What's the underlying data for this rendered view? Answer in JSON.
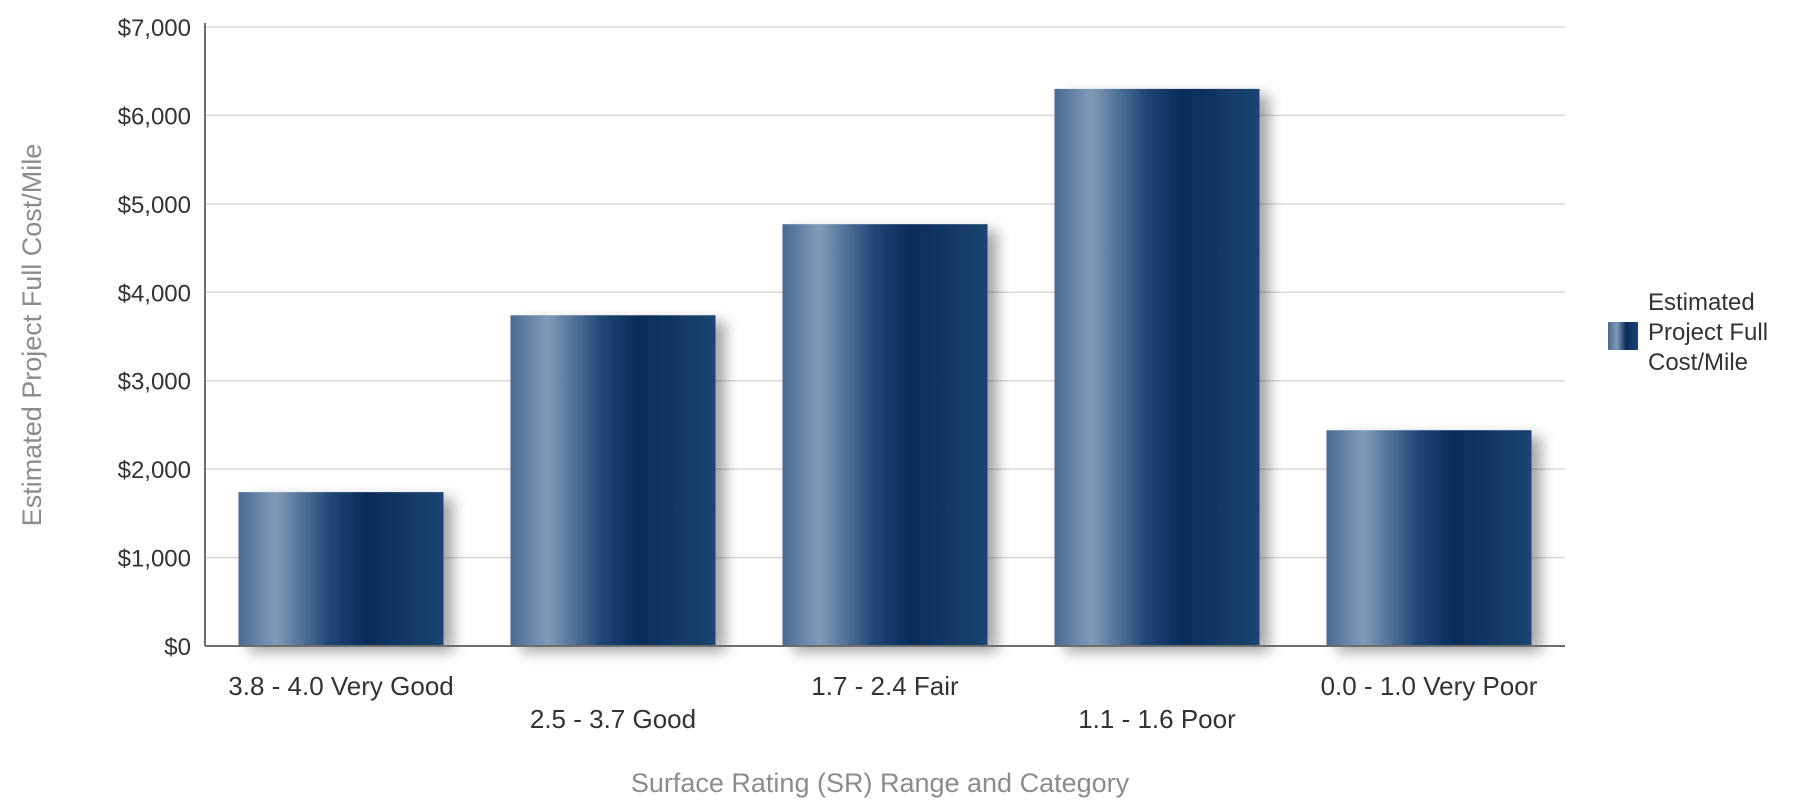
{
  "chart_data": {
    "type": "bar",
    "categories": [
      "3.8 - 4.0 Very Good",
      "2.5 - 3.7 Good",
      "1.7 - 2.4 Fair",
      "1.1 - 1.6 Poor",
      "0.0 - 1.0 Very Poor"
    ],
    "series": [
      {
        "name": "Estimated Project Full Cost/Mile",
        "values": [
          1740,
          3740,
          4770,
          6300,
          2440
        ]
      }
    ],
    "title": "",
    "xlabel": "Surface Rating (SR) Range and Category",
    "ylabel": "Estimated Project Full Cost/Mile",
    "ylim": [
      0,
      7000
    ],
    "yticks": [
      "$0",
      "$1,000",
      "$2,000",
      "$3,000",
      "$4,000",
      "$5,000",
      "$6,000",
      "$7,000"
    ],
    "grid": true,
    "legend": "right",
    "colors": {
      "bar_dark": "#0d2f5e",
      "bar_light": "#7f9bb8",
      "grid": "#d9d9d9",
      "axis": "#6e6e6e",
      "text": "#333333",
      "axis_title": "#8c8c8c"
    }
  }
}
